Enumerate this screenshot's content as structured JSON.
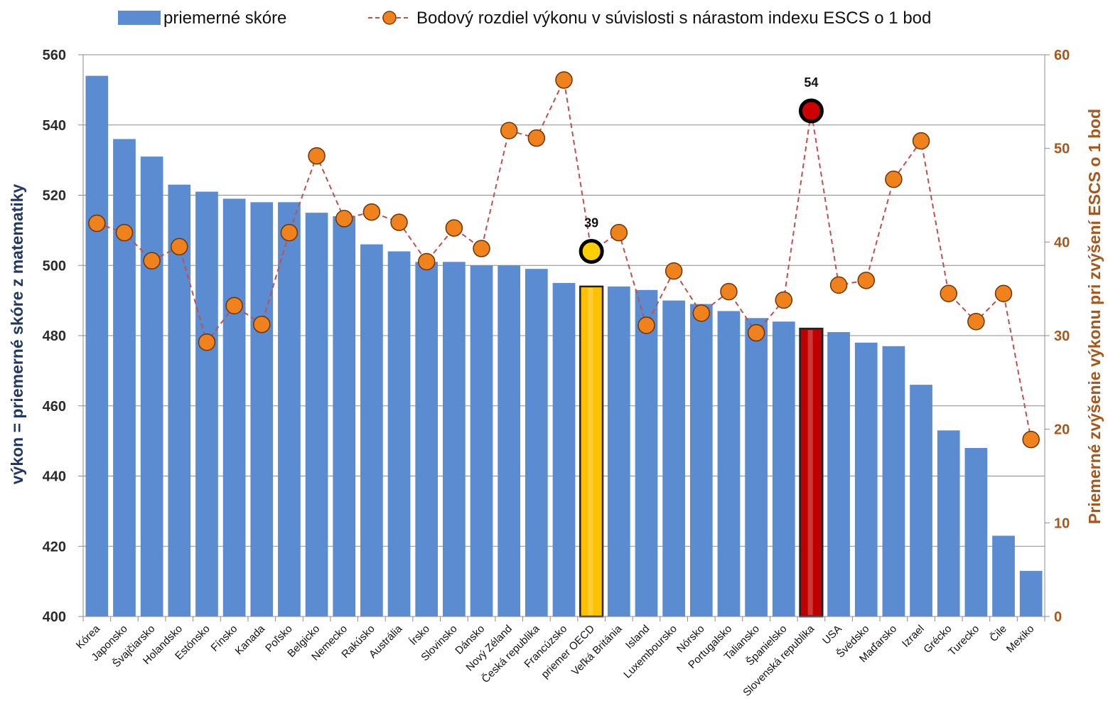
{
  "chart_data": {
    "type": "bar",
    "categories": [
      "Kórea",
      "Japonsko",
      "Švajčiarsko",
      "Holandsko",
      "Estónsko",
      "Fínsko",
      "Kanada",
      "Poľsko",
      "Belgicko",
      "Nemecko",
      "Rakúsko",
      "Austrália",
      "Írsko",
      "Slovinsko",
      "Dánsko",
      "Nový Zéland",
      "Česká republika",
      "Francúzsko",
      "priemer OECD",
      "Veľká Británia",
      "Island",
      "Luxemboursko",
      "Nórsko",
      "Portugalsko",
      "Taliansko",
      "Španielsko",
      "Slovenská republika",
      "USA",
      "Švédsko",
      "Maďarsko",
      "Izrael",
      "Grécko",
      "Turecko",
      "Čile",
      "Mexiko"
    ],
    "series": [
      {
        "name": "priemerné skóre",
        "type": "bar",
        "axis": "left",
        "color": "#5b8bd0",
        "values": [
          554,
          536,
          531,
          523,
          521,
          519,
          518,
          518,
          515,
          514,
          506,
          504,
          501,
          501,
          500,
          500,
          499,
          495,
          494,
          494,
          493,
          490,
          489,
          487,
          485,
          484,
          482,
          481,
          478,
          477,
          466,
          453,
          448,
          423,
          413
        ]
      },
      {
        "name": "Bodový rozdiel výkonu v súvislosti s nárastom indexu ESCS o 1 bod",
        "type": "line",
        "axis": "right",
        "color": "#f0821e",
        "line_color": "#c0504d",
        "values": [
          42,
          41,
          38,
          39.5,
          29.3,
          33.2,
          31.2,
          41,
          49.2,
          42.5,
          43.2,
          42.1,
          37.9,
          41.5,
          39.3,
          51.9,
          51.1,
          57.3,
          39,
          41,
          31.1,
          36.9,
          32.4,
          34.7,
          30.3,
          33.8,
          54,
          35.4,
          35.9,
          46.7,
          50.8,
          34.5,
          31.5,
          34.5,
          18.9
        ]
      }
    ],
    "ylim": [
      400,
      560
    ],
    "y_ticks": [
      400,
      420,
      440,
      460,
      480,
      500,
      520,
      540,
      560
    ],
    "y2lim": [
      0,
      60
    ],
    "y2_ticks": [
      0,
      10,
      20,
      30,
      40,
      50,
      60
    ],
    "ylabel": "výkon = priemerné skóre z matematiky",
    "y2label": "Priemerné zvýšenie výkonu pri zvýšení ESCS o 1 bod",
    "highlights": [
      {
        "category": "priemer OECD",
        "bar_color": "#ffc000",
        "label": "39"
      },
      {
        "category": "Slovenská republika",
        "bar_color": "#c00000",
        "label": "54"
      }
    ],
    "grid": true,
    "legend_position": "top"
  }
}
